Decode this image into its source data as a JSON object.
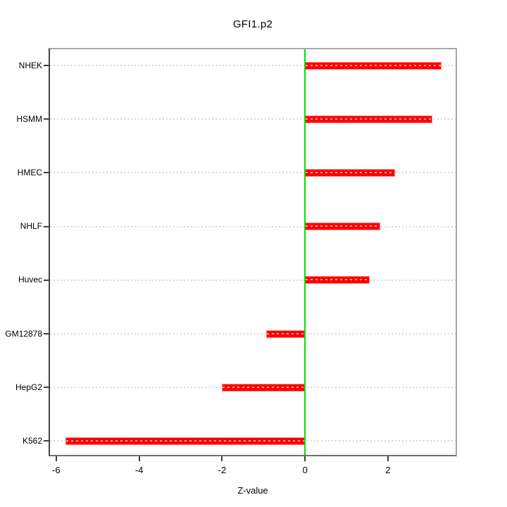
{
  "chart_data": {
    "type": "bar",
    "orientation": "horizontal",
    "title": "GFI1.p2",
    "xlabel": "Z-value",
    "categories": [
      "NHEK",
      "HSMM",
      "HMEC",
      "NHLF",
      "Huvec",
      "GM12878",
      "HepG2",
      "K562"
    ],
    "values": [
      3.29,
      3.07,
      2.17,
      1.82,
      1.56,
      -0.93,
      -2.0,
      -5.77
    ],
    "xlim": [
      -6.15,
      3.63
    ],
    "xticks": [
      -6,
      -4,
      -2,
      0,
      2
    ],
    "xtick_labels": [
      "-6",
      "-4",
      "-2",
      "0",
      "2"
    ],
    "zero_line": 0,
    "grid": "dotted-horizontal",
    "legend": "none",
    "colors": {
      "background": "#ffffff",
      "bar": "#fd0000",
      "bar_border": "#ff8484",
      "zero_line": "#00e408",
      "grid": "#d8d8d8",
      "box": "#a8a8a8",
      "axis_left": "#454545",
      "axis_bottom": "#6e6e6e",
      "tick": "#3d3d3d",
      "text": "#000000"
    }
  }
}
